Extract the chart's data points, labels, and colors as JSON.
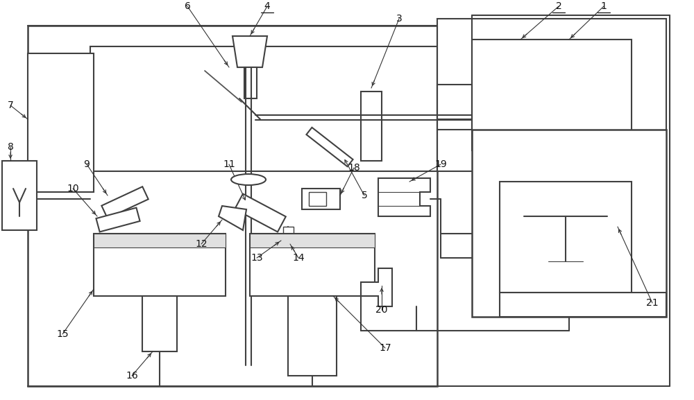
{
  "figsize": [
    10.0,
    5.77
  ],
  "dpi": 100,
  "lc": "#404040",
  "lw": 1.5,
  "tlw": 0.8,
  "fs": 10,
  "xlim": [
    0,
    100
  ],
  "ylim": [
    0,
    57.7
  ]
}
